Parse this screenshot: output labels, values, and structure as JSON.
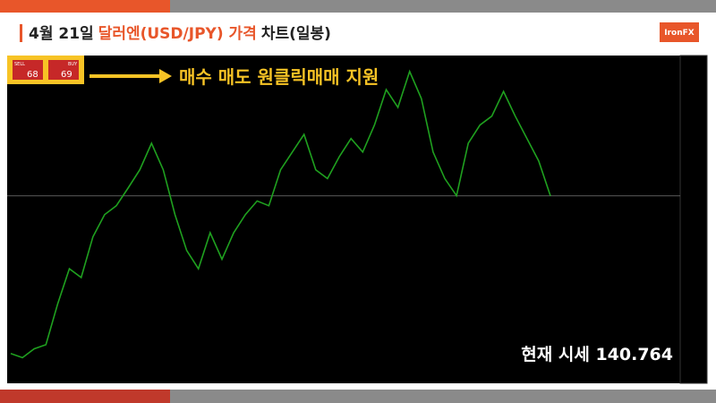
{
  "header": {
    "title_date": "4월 21일",
    "title_pair": "달러엔(USD/JPY) 가격",
    "title_suffix": "차트(일봉)",
    "logo": "IronFX"
  },
  "widget": {
    "sell_label": "SELL",
    "buy_label": "BUY",
    "sell_price": "68",
    "buy_price": "69"
  },
  "banner": "매수 매도 원클릭매매 지원",
  "current_price": "현재 시세 140.764",
  "chart_data": {
    "type": "line",
    "color": "#1fa01f",
    "values": [
      114.0,
      113.3,
      114.8,
      115.5,
      122.4,
      128.4,
      126.9,
      133.8,
      137.6,
      139.1,
      142.1,
      145.2,
      149.7,
      145.2,
      137.6,
      131.5,
      128.4,
      134.5,
      130.0,
      134.5,
      137.6,
      139.9,
      139.1,
      145.2,
      148.2,
      151.2,
      145.2,
      143.7,
      147.4,
      150.5,
      148.2,
      152.8,
      158.8,
      155.8,
      161.9,
      157.3,
      148.2,
      143.7,
      140.8,
      149.7,
      152.8,
      154.3,
      158.5,
      154.3,
      150.5,
      146.7,
      140.764
    ],
    "ylim": [
      109.4,
      164.6
    ]
  }
}
